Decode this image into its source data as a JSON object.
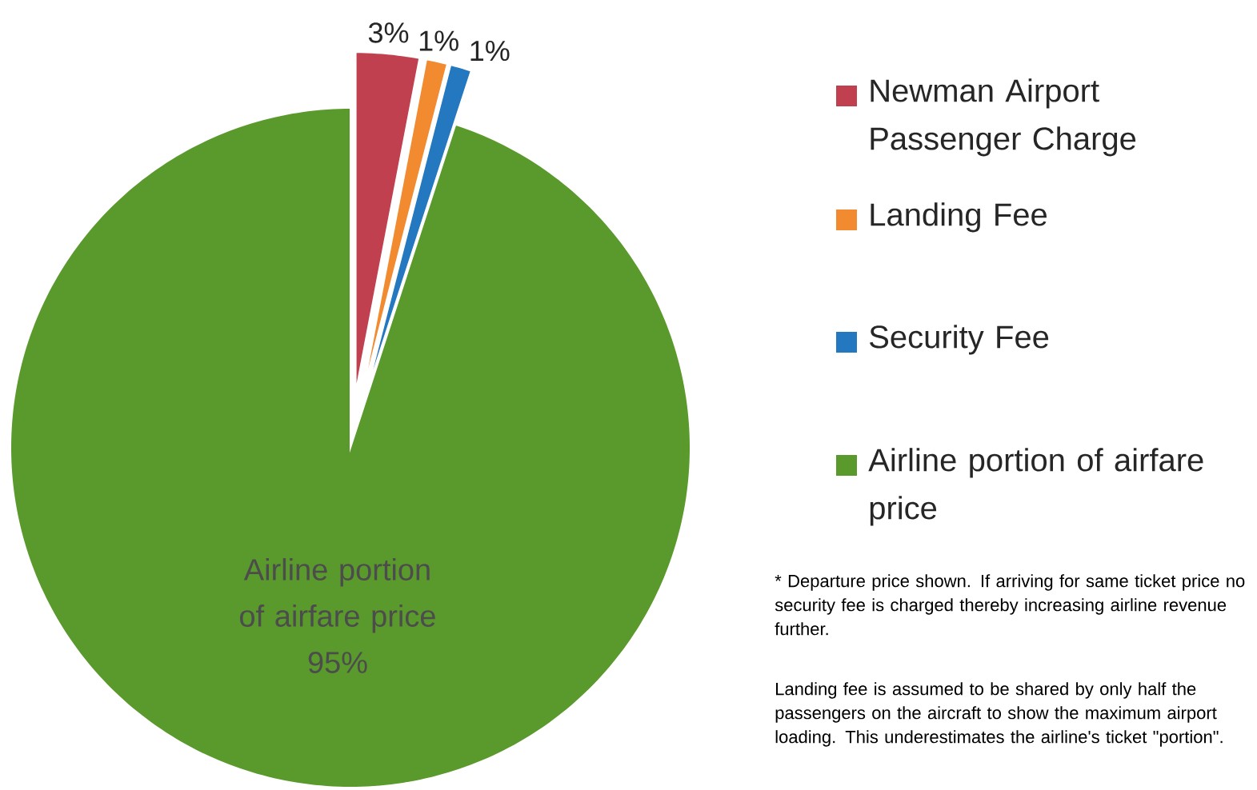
{
  "chart_data": {
    "type": "pie",
    "categories": [
      "Newman Airport Passenger Charge",
      "Landing Fee",
      "Security Fee",
      "Airline portion of airfare price"
    ],
    "values": [
      3,
      1,
      1,
      95
    ],
    "value_labels": [
      "3%",
      "1%",
      "1%",
      "95%"
    ],
    "colors": [
      "#c0404f",
      "#f28a30",
      "#2378bf",
      "#5a9a2c"
    ],
    "legend": "right",
    "annotations": [
      "* Departure price shown. If arriving for same ticket price no security fee is charged thereby increasing airline revenue further.",
      "Landing fee is assumed to be shared by only half the passengers on the aircraft to show the maximum airport loading.  This underestimates the airline's ticket \"portion\"."
    ]
  }
}
